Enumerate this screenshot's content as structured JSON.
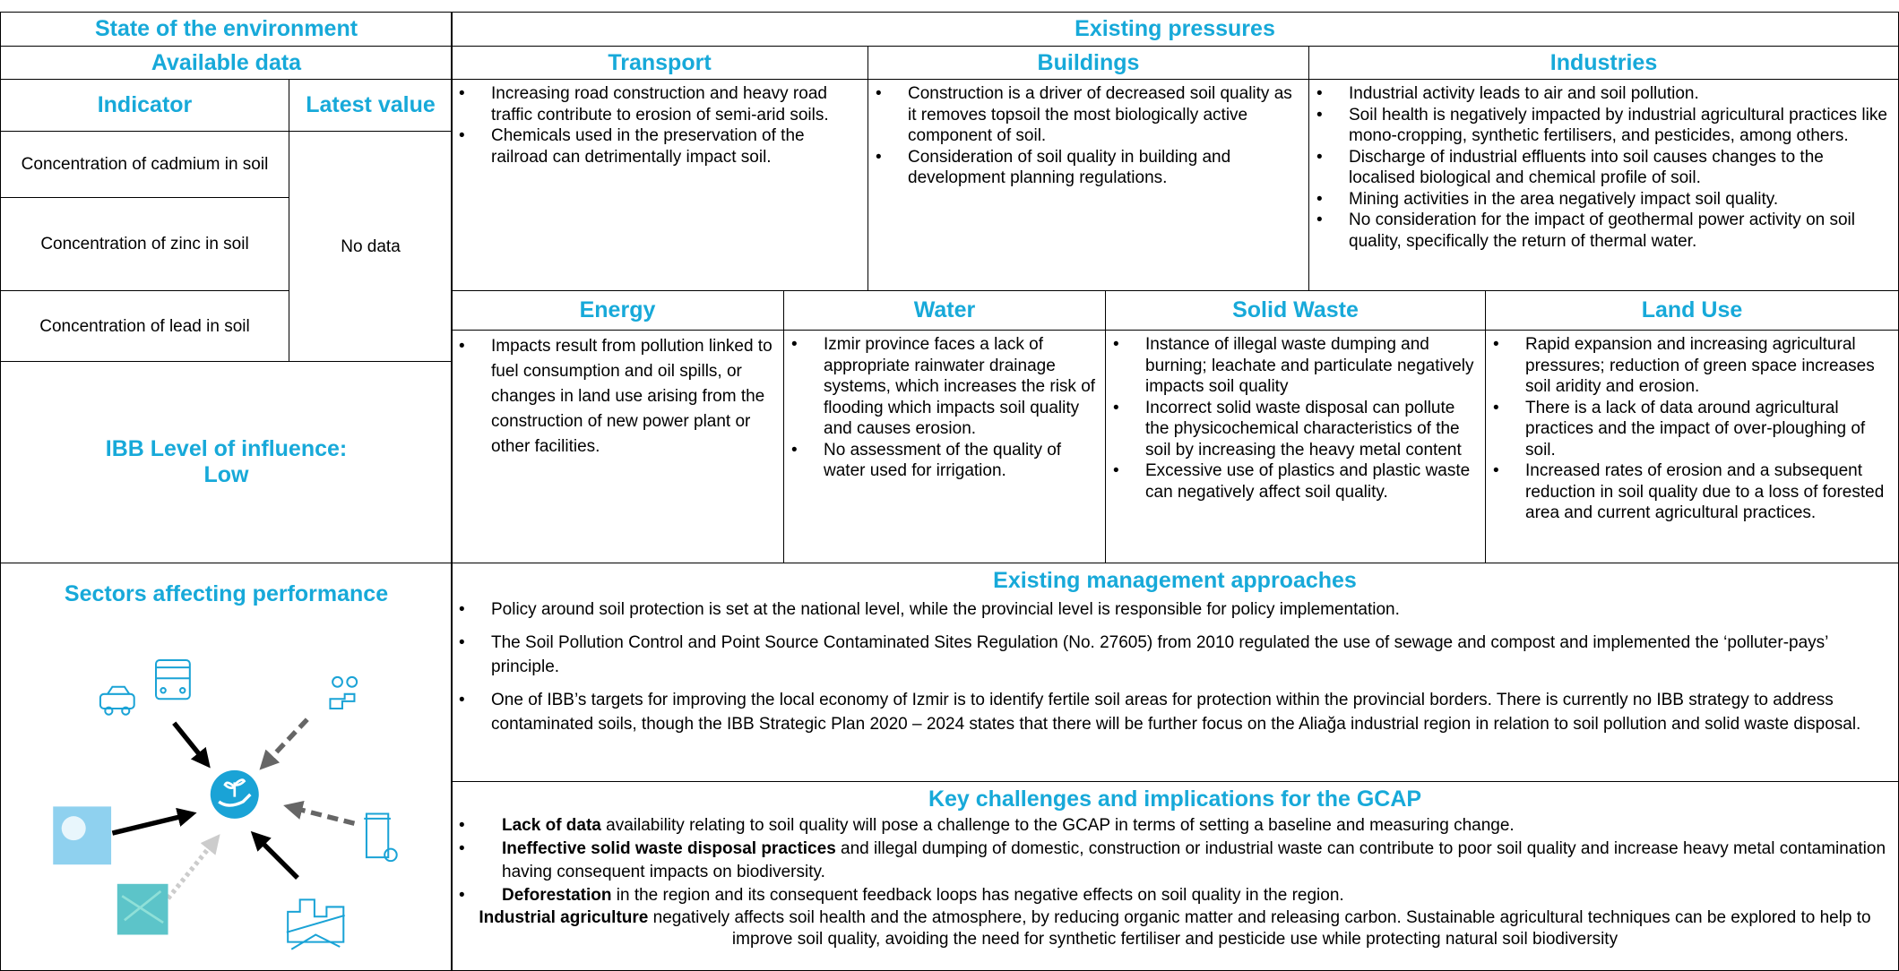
{
  "header": {
    "state_title": "State of the environment",
    "pressures_title": "Existing pressures"
  },
  "available_data": {
    "title": "Available data",
    "columns": [
      "Indicator",
      "Latest value"
    ],
    "indicators": [
      "Concentration of cadmium in soil",
      "Concentration of zinc in soil",
      "Concentration of lead in soil"
    ],
    "latest_value": "No data"
  },
  "influence": {
    "label": "IBB Level of influence:",
    "level": "Low"
  },
  "sectors_title": "Sectors affecting performance",
  "pressures": [
    {
      "sector": "Transport",
      "points": [
        "Increasing road construction and heavy road traffic contribute to erosion of semi-arid soils.",
        "Chemicals used in the preservation of the railroad can detrimentally impact soil."
      ]
    },
    {
      "sector": "Buildings",
      "points": [
        "Construction is a driver of decreased soil quality as it removes topsoil the most biologically active component of soil.",
        "Consideration of soil quality in building and development planning regulations."
      ]
    },
    {
      "sector": "Industries",
      "points": [
        "Industrial activity leads to air and soil pollution.",
        "Soil health is negatively impacted by industrial agricultural practices like mono-cropping, synthetic fertilisers, and pesticides, among others.",
        "Discharge of industrial effluents into soil causes changes to the localised biological and chemical profile of soil.",
        "Mining activities in the area negatively impact soil quality.",
        "No consideration for the impact of geothermal power activity on soil quality, specifically the return of thermal water."
      ]
    },
    {
      "sector": "Energy",
      "points": [
        "Impacts result from pollution linked to fuel consumption and oil spills, or changes in land use arising from the construction of new power plant or other facilities."
      ]
    },
    {
      "sector": "Water",
      "points": [
        "Izmir province faces a lack of appropriate rainwater drainage systems, which increases the risk of flooding which impacts soil quality and causes erosion.",
        "No assessment of the quality of water used for irrigation."
      ]
    },
    {
      "sector": "Solid Waste",
      "points": [
        "Instance of illegal waste dumping and burning; leachate and particulate negatively impacts soil quality",
        "Incorrect solid waste disposal can pollute the physicochemical characteristics of the soil by increasing the heavy metal content",
        "Excessive use of plastics and plastic waste can negatively affect soil quality."
      ]
    },
    {
      "sector": "Land Use",
      "points": [
        "Rapid expansion and increasing agricultural pressures; reduction of green space increases soil aridity and erosion.",
        "There is a lack of data around agricultural practices and the impact of over-ploughing of soil.",
        "Increased rates of erosion and a subsequent reduction in soil quality due to a loss of forested area and current agricultural practices."
      ]
    }
  ],
  "management": {
    "title": "Existing management approaches",
    "points": [
      "Policy around soil protection is set at the national level, while the provincial level is responsible for policy implementation.",
      "The Soil Pollution Control and Point Source Contaminated Sites Regulation (No. 27605) from 2010 regulated the use of sewage and compost and implemented the ‘polluter-pays’ principle.",
      "One of IBB’s targets for improving the local economy of Izmir is to identify fertile soil areas for protection within the provincial borders. There is currently no IBB strategy to address contaminated soils, though the IBB Strategic Plan 2020 – 2024 states that there will be further focus on the Aliağa industrial region in relation to soil pollution and solid waste disposal."
    ]
  },
  "challenges": {
    "title": "Key challenges and implications for the GCAP",
    "points": [
      {
        "bold": "Lack of data",
        "text": " availability relating to soil quality will pose a challenge to the GCAP in terms of setting a baseline and measuring change."
      },
      {
        "bold": "Ineffective solid waste disposal practices",
        "text": " and illegal dumping of domestic, construction or industrial waste can contribute to poor soil quality and increase heavy metal contamination having consequent impacts on biodiversity."
      },
      {
        "bold": "Deforestation",
        "text": " in the region and its consequent feedback loops has negative effects on soil quality in the region."
      }
    ],
    "closing": {
      "bold": "Industrial agriculture",
      "text": " negatively affects soil health and the atmosphere, by reducing organic matter and releasing carbon. Sustainable agricultural techniques can be explored to help to improve soil quality, avoiding the need for synthetic fertiliser and pesticide use while protecting natural soil biodiversity"
    }
  }
}
